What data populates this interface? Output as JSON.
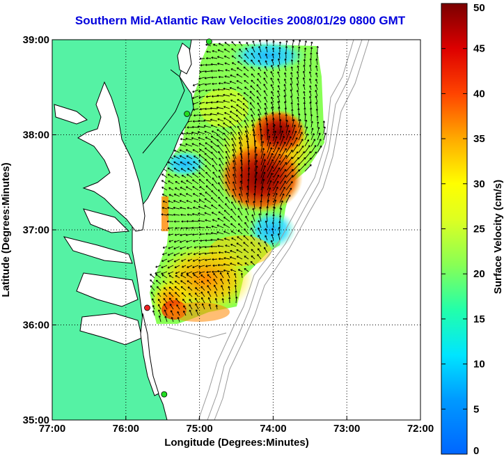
{
  "title": "Southern Mid-Atlantic Raw Velocities 2008/01/29 0800 GMT",
  "x_axis": {
    "label": "Longitude (Degrees:Minutes)",
    "ticks": [
      "77:00",
      "76:00",
      "75:00",
      "74:00",
      "73:00",
      "72:00"
    ],
    "range_deg": [
      -77,
      -72
    ]
  },
  "y_axis": {
    "label": "Latitude (Degrees:Minutes)",
    "ticks": [
      "39:00",
      "38:00",
      "37:00",
      "36:00",
      "35:00"
    ],
    "range_deg": [
      35,
      39
    ]
  },
  "colorbar": {
    "label": "Surface Velocity (cm/s)",
    "ticks": [
      "50",
      "45",
      "40",
      "35",
      "30",
      "25",
      "20",
      "15",
      "10",
      "5",
      "0"
    ],
    "min": 0,
    "max": 50,
    "colormap": "jet"
  },
  "grid": "dotted",
  "colors": {
    "land": "#55f2a4",
    "water": "#ffffff",
    "coastline": "#000000",
    "bathymetry": "#999999",
    "vectors": "#000000",
    "station_green": "#22dd22",
    "station_red": "#ee2222"
  },
  "stations": [
    {
      "lon": -74.87,
      "lat": 38.98,
      "status": "green"
    },
    {
      "lon": -75.17,
      "lat": 38.22,
      "status": "green"
    },
    {
      "lon": -75.71,
      "lat": 36.18,
      "status": "red"
    },
    {
      "lon": -75.48,
      "lat": 35.27,
      "status": "green"
    }
  ]
}
